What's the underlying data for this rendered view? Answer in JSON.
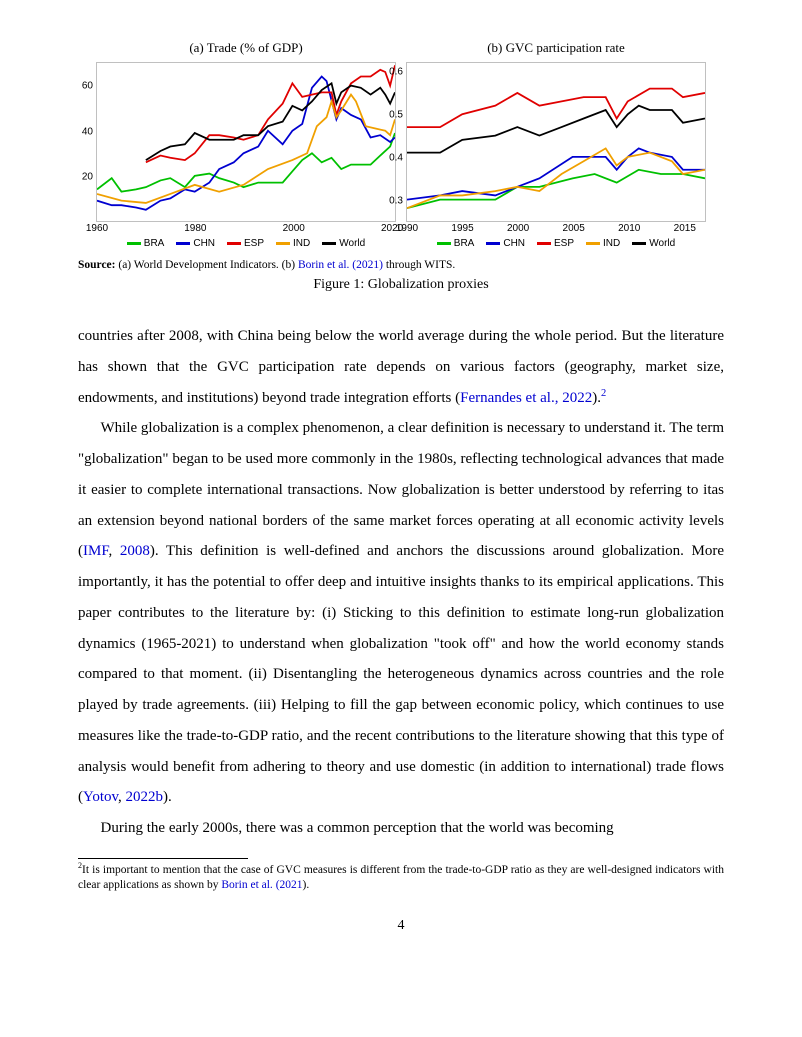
{
  "charts": {
    "a": {
      "type": "line",
      "title": "(a) Trade (% of GDP)",
      "xlim": [
        1960,
        2021
      ],
      "ylim": [
        0,
        70
      ],
      "yticks": [
        20,
        40,
        60
      ],
      "xticks": [
        1960,
        1980,
        2000,
        2020
      ],
      "background_color": "#ffffff",
      "grid_color": "#e0e0e0",
      "line_width": 1.8,
      "series": [
        {
          "name": "BRA",
          "color": "#00c000",
          "points": [
            [
              1960,
              14
            ],
            [
              1963,
              19
            ],
            [
              1965,
              13
            ],
            [
              1968,
              14
            ],
            [
              1970,
              15
            ],
            [
              1973,
              18
            ],
            [
              1975,
              19
            ],
            [
              1978,
              15
            ],
            [
              1980,
              20
            ],
            [
              1983,
              21
            ],
            [
              1985,
              19
            ],
            [
              1988,
              17
            ],
            [
              1990,
              15
            ],
            [
              1993,
              17
            ],
            [
              1995,
              17
            ],
            [
              1998,
              17
            ],
            [
              2000,
              22
            ],
            [
              2002,
              27
            ],
            [
              2004,
              30
            ],
            [
              2006,
              26
            ],
            [
              2008,
              28
            ],
            [
              2010,
              23
            ],
            [
              2012,
              25
            ],
            [
              2014,
              25
            ],
            [
              2016,
              25
            ],
            [
              2018,
              29
            ],
            [
              2020,
              33
            ],
            [
              2021,
              39
            ]
          ]
        },
        {
          "name": "CHN",
          "color": "#0000d0",
          "points": [
            [
              1960,
              9
            ],
            [
              1963,
              7
            ],
            [
              1965,
              7
            ],
            [
              1968,
              6
            ],
            [
              1970,
              5
            ],
            [
              1973,
              9
            ],
            [
              1975,
              10
            ],
            [
              1978,
              14
            ],
            [
              1980,
              13
            ],
            [
              1983,
              17
            ],
            [
              1985,
              23
            ],
            [
              1988,
              26
            ],
            [
              1990,
              30
            ],
            [
              1993,
              33
            ],
            [
              1995,
              40
            ],
            [
              1998,
              34
            ],
            [
              2000,
              40
            ],
            [
              2002,
              43
            ],
            [
              2004,
              59
            ],
            [
              2006,
              64
            ],
            [
              2007,
              62
            ],
            [
              2009,
              45
            ],
            [
              2010,
              50
            ],
            [
              2012,
              47
            ],
            [
              2014,
              45
            ],
            [
              2016,
              37
            ],
            [
              2018,
              38
            ],
            [
              2020,
              35
            ],
            [
              2021,
              37
            ]
          ]
        },
        {
          "name": "ESP",
          "color": "#e00000",
          "points": [
            [
              1970,
              26
            ],
            [
              1973,
              29
            ],
            [
              1975,
              28
            ],
            [
              1978,
              27
            ],
            [
              1980,
              30
            ],
            [
              1983,
              38
            ],
            [
              1985,
              38
            ],
            [
              1988,
              37
            ],
            [
              1990,
              36
            ],
            [
              1993,
              38
            ],
            [
              1995,
              45
            ],
            [
              1998,
              52
            ],
            [
              2000,
              61
            ],
            [
              2002,
              55
            ],
            [
              2004,
              56
            ],
            [
              2006,
              57
            ],
            [
              2008,
              57
            ],
            [
              2009,
              47
            ],
            [
              2010,
              53
            ],
            [
              2012,
              61
            ],
            [
              2014,
              64
            ],
            [
              2016,
              64
            ],
            [
              2018,
              67
            ],
            [
              2019,
              66
            ],
            [
              2020,
              60
            ],
            [
              2021,
              69
            ]
          ]
        },
        {
          "name": "IND",
          "color": "#f0a000",
          "points": [
            [
              1960,
              12
            ],
            [
              1965,
              9
            ],
            [
              1970,
              8
            ],
            [
              1975,
              12
            ],
            [
              1980,
              16
            ],
            [
              1985,
              13
            ],
            [
              1990,
              16
            ],
            [
              1995,
              23
            ],
            [
              2000,
              27
            ],
            [
              2003,
              30
            ],
            [
              2005,
              42
            ],
            [
              2007,
              46
            ],
            [
              2008,
              53
            ],
            [
              2009,
              46
            ],
            [
              2010,
              49
            ],
            [
              2012,
              56
            ],
            [
              2013,
              53
            ],
            [
              2015,
              42
            ],
            [
              2017,
              41
            ],
            [
              2019,
              40
            ],
            [
              2020,
              38
            ],
            [
              2021,
              45
            ]
          ]
        },
        {
          "name": "World",
          "color": "#000000",
          "points": [
            [
              1970,
              27
            ],
            [
              1973,
              31
            ],
            [
              1975,
              33
            ],
            [
              1978,
              34
            ],
            [
              1980,
              39
            ],
            [
              1983,
              36
            ],
            [
              1985,
              36
            ],
            [
              1988,
              36
            ],
            [
              1990,
              38
            ],
            [
              1993,
              38
            ],
            [
              1995,
              42
            ],
            [
              1998,
              44
            ],
            [
              2000,
              51
            ],
            [
              2002,
              49
            ],
            [
              2004,
              53
            ],
            [
              2006,
              58
            ],
            [
              2008,
              61
            ],
            [
              2009,
              52
            ],
            [
              2010,
              57
            ],
            [
              2012,
              60
            ],
            [
              2014,
              59
            ],
            [
              2016,
              56
            ],
            [
              2018,
              59
            ],
            [
              2019,
              56
            ],
            [
              2020,
              52
            ],
            [
              2021,
              57
            ]
          ]
        }
      ]
    },
    "b": {
      "type": "line",
      "title": "(b) GVC participation rate",
      "xlim": [
        1990,
        2017
      ],
      "ylim": [
        0.25,
        0.62
      ],
      "yticks": [
        0.3,
        0.4,
        0.5,
        0.6
      ],
      "xticks": [
        1990,
        1995,
        2000,
        2005,
        2010,
        2015
      ],
      "background_color": "#ffffff",
      "grid_color": "#e0e0e0",
      "line_width": 1.8,
      "series": [
        {
          "name": "BRA",
          "color": "#00c000",
          "points": [
            [
              1990,
              0.28
            ],
            [
              1993,
              0.3
            ],
            [
              1995,
              0.3
            ],
            [
              1998,
              0.3
            ],
            [
              2000,
              0.33
            ],
            [
              2002,
              0.33
            ],
            [
              2005,
              0.35
            ],
            [
              2007,
              0.36
            ],
            [
              2009,
              0.34
            ],
            [
              2011,
              0.37
            ],
            [
              2013,
              0.36
            ],
            [
              2015,
              0.36
            ],
            [
              2017,
              0.35
            ]
          ]
        },
        {
          "name": "CHN",
          "color": "#0000d0",
          "points": [
            [
              1990,
              0.3
            ],
            [
              1993,
              0.31
            ],
            [
              1995,
              0.32
            ],
            [
              1998,
              0.31
            ],
            [
              2000,
              0.33
            ],
            [
              2002,
              0.35
            ],
            [
              2005,
              0.4
            ],
            [
              2007,
              0.4
            ],
            [
              2008,
              0.4
            ],
            [
              2009,
              0.37
            ],
            [
              2010,
              0.4
            ],
            [
              2011,
              0.42
            ],
            [
              2012,
              0.41
            ],
            [
              2014,
              0.4
            ],
            [
              2015,
              0.37
            ],
            [
              2017,
              0.37
            ]
          ]
        },
        {
          "name": "ESP",
          "color": "#e00000",
          "points": [
            [
              1990,
              0.47
            ],
            [
              1993,
              0.47
            ],
            [
              1995,
              0.5
            ],
            [
              1998,
              0.52
            ],
            [
              2000,
              0.55
            ],
            [
              2002,
              0.52
            ],
            [
              2004,
              0.53
            ],
            [
              2006,
              0.54
            ],
            [
              2008,
              0.54
            ],
            [
              2009,
              0.49
            ],
            [
              2010,
              0.53
            ],
            [
              2012,
              0.56
            ],
            [
              2014,
              0.56
            ],
            [
              2015,
              0.54
            ],
            [
              2017,
              0.55
            ]
          ]
        },
        {
          "name": "IND",
          "color": "#f0a000",
          "points": [
            [
              1990,
              0.28
            ],
            [
              1993,
              0.31
            ],
            [
              1995,
              0.31
            ],
            [
              1998,
              0.32
            ],
            [
              2000,
              0.33
            ],
            [
              2002,
              0.32
            ],
            [
              2004,
              0.36
            ],
            [
              2006,
              0.39
            ],
            [
              2008,
              0.42
            ],
            [
              2009,
              0.38
            ],
            [
              2010,
              0.4
            ],
            [
              2012,
              0.41
            ],
            [
              2014,
              0.39
            ],
            [
              2015,
              0.36
            ],
            [
              2017,
              0.37
            ]
          ]
        },
        {
          "name": "World",
          "color": "#000000",
          "points": [
            [
              1990,
              0.41
            ],
            [
              1993,
              0.41
            ],
            [
              1995,
              0.44
            ],
            [
              1998,
              0.45
            ],
            [
              2000,
              0.47
            ],
            [
              2002,
              0.45
            ],
            [
              2004,
              0.47
            ],
            [
              2006,
              0.49
            ],
            [
              2008,
              0.51
            ],
            [
              2009,
              0.47
            ],
            [
              2010,
              0.5
            ],
            [
              2011,
              0.52
            ],
            [
              2012,
              0.51
            ],
            [
              2014,
              0.51
            ],
            [
              2015,
              0.48
            ],
            [
              2017,
              0.49
            ]
          ]
        }
      ]
    }
  },
  "legend": [
    {
      "name": "BRA",
      "color": "#00c000"
    },
    {
      "name": "CHN",
      "color": "#0000d0"
    },
    {
      "name": "ESP",
      "color": "#e00000"
    },
    {
      "name": "IND",
      "color": "#f0a000"
    },
    {
      "name": "World",
      "color": "#000000"
    }
  ],
  "source": {
    "label": "Source:",
    "part_a": "(a) World Development Indicators. (b) ",
    "link_text": "Borin et al.",
    "link_year": "(2021)",
    "part_c": " through WITS."
  },
  "figure_caption": "Figure 1: Globalization proxies",
  "paragraphs": {
    "p1_a": "countries after 2008, with China being below the world average during the whole period. But the literature has shown that the GVC participation rate depends on various factors (geography, market size, endowments, and institutions) beyond trade integration efforts (",
    "p1_link": "Fernandes et al.",
    "p1_year": ", 2022",
    "p1_b": ").",
    "p1_sup": "2",
    "p2_a": "While globalization is a complex phenomenon, a clear definition is necessary to understand it. The term \"globalization\" began to be used more commonly in the 1980s, reflecting technological advances that made it easier to complete international transactions. Now globalization is better understood by referring to itas an extension beyond national borders of the same market forces operating at all economic activity levels (",
    "p2_link1": "IMF",
    "p2_b": ", ",
    "p2_link2": "2008",
    "p2_c": "). This definition is well-defined and anchors the discussions around globalization. More importantly, it has the potential to offer deep and intuitive insights thanks to its empirical applications. This paper contributes to the literature by: (i) Sticking to this definition to estimate long-run globalization dynamics (1965-2021) to understand when globalization \"took off\" and how the world economy stands compared to that moment. (ii) Disentangling the heterogeneous dynamics across countries and the role played by trade agreements. (iii) Helping to fill the gap between economic policy, which continues to use measures like the trade-to-GDP ratio, and the recent contributions to the literature showing that this type of analysis would benefit from adhering to theory and use domestic (in addition to international) trade flows (",
    "p2_link3": "Yotov",
    "p2_d": ", ",
    "p2_link4": "2022b",
    "p2_e": ").",
    "p3_a": "During the early 2000s, there was a common perception that the world was becoming"
  },
  "footnote": {
    "num": "2",
    "text_a": "It is important to mention that the case of GVC measures is different from the trade-to-GDP ratio as they are well-designed indicators with clear applications as shown by ",
    "link": "Borin et al.",
    "year": " (2021",
    "text_b": ")."
  },
  "page_number": "4"
}
